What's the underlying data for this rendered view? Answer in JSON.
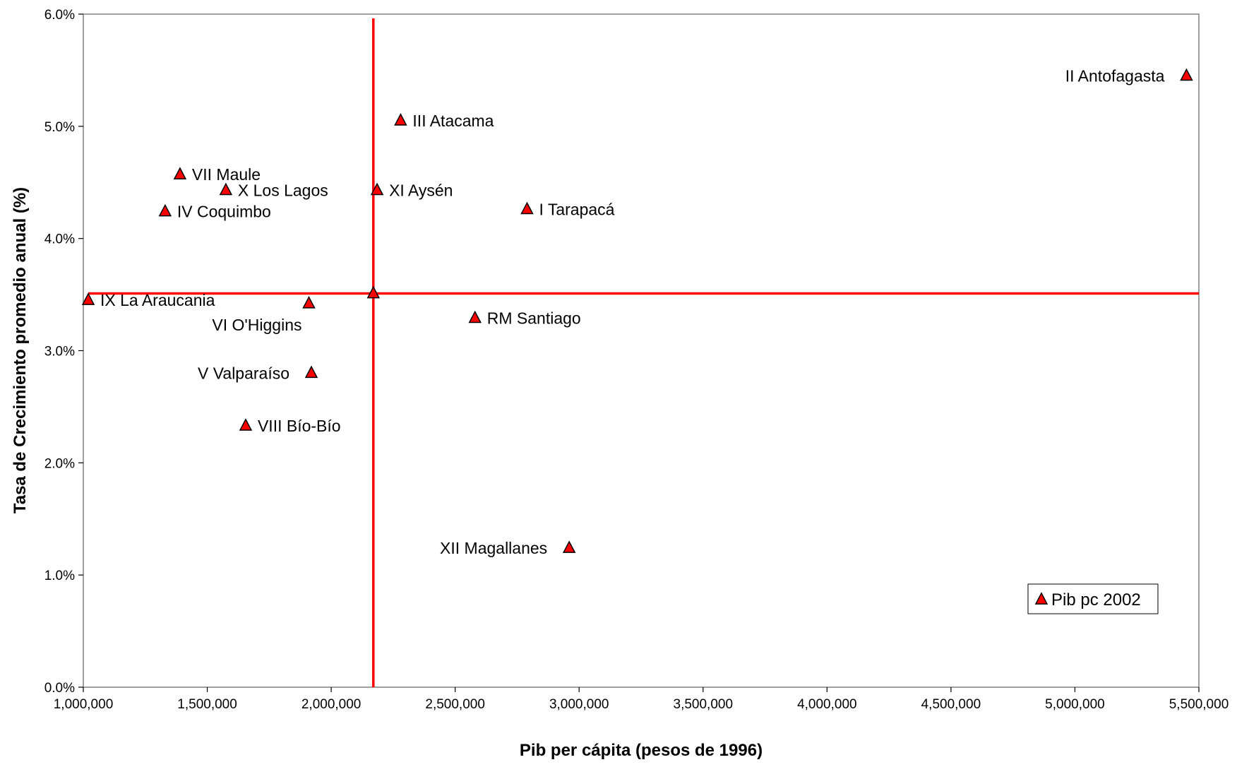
{
  "chart_data": {
    "type": "scatter",
    "xlabel": "Pib per cápita (pesos de 1996)",
    "ylabel": "Tasa de Crecimiento promedio anual (%)",
    "xlim": [
      1000000,
      5500000
    ],
    "ylim": [
      0.0,
      6.0
    ],
    "x_ticks": [
      1000000,
      1500000,
      2000000,
      2500000,
      3000000,
      3500000,
      4000000,
      4500000,
      5000000,
      5500000
    ],
    "x_tick_labels": [
      "1,000,000",
      "1,500,000",
      "2,000,000",
      "2,500,000",
      "3,000,000",
      "3,500,000",
      "4,000,000",
      "4,500,000",
      "5,000,000",
      "5,500,000"
    ],
    "y_ticks": [
      0,
      1,
      2,
      3,
      4,
      5,
      6
    ],
    "y_tick_labels": [
      "0.0%",
      "1.0%",
      "2.0%",
      "3.0%",
      "4.0%",
      "5.0%",
      "6.0%"
    ],
    "grid": false,
    "legend_position": "bottom-right",
    "marker_color": "#ff0000",
    "reference_line_color": "#ff0000",
    "reference_lines": {
      "x": 2170000,
      "y": 3.51
    },
    "series": [
      {
        "name": "Pib pc 2002",
        "marker": "triangle",
        "points": [
          {
            "label": "II Antofagasta",
            "x": 5450000,
            "y": 5.45,
            "label_side": "left"
          },
          {
            "label": "III Atacama",
            "x": 2280000,
            "y": 5.05,
            "label_side": "right"
          },
          {
            "label": "VII  Maule",
            "x": 1390000,
            "y": 4.57,
            "label_side": "right"
          },
          {
            "label": "X  Los Lagos",
            "x": 1575000,
            "y": 4.43,
            "label_side": "right"
          },
          {
            "label": "XI  Aysén",
            "x": 2185000,
            "y": 4.43,
            "label_side": "right"
          },
          {
            "label": "IV  Coquimbo",
            "x": 1330000,
            "y": 4.24,
            "label_side": "right"
          },
          {
            "label": "I Tarapacá",
            "x": 2790000,
            "y": 4.26,
            "label_side": "right"
          },
          {
            "label": "IX  La Araucania",
            "x": 1020000,
            "y": 3.45,
            "label_side": "right"
          },
          {
            "label": "VI  O'Higgins",
            "x": 1910000,
            "y": 3.42,
            "label_side": "below-left"
          },
          {
            "label": "",
            "x": 2170000,
            "y": 3.51,
            "label_side": "none"
          },
          {
            "label": "RM  Santiago",
            "x": 2580000,
            "y": 3.29,
            "label_side": "right"
          },
          {
            "label": "V  Valparaíso",
            "x": 1920000,
            "y": 2.8,
            "label_side": "left"
          },
          {
            "label": "VIII  Bío-Bío",
            "x": 1655000,
            "y": 2.33,
            "label_side": "right"
          },
          {
            "label": "XII  Magallanes",
            "x": 2960000,
            "y": 1.24,
            "label_side": "left"
          }
        ]
      }
    ]
  }
}
